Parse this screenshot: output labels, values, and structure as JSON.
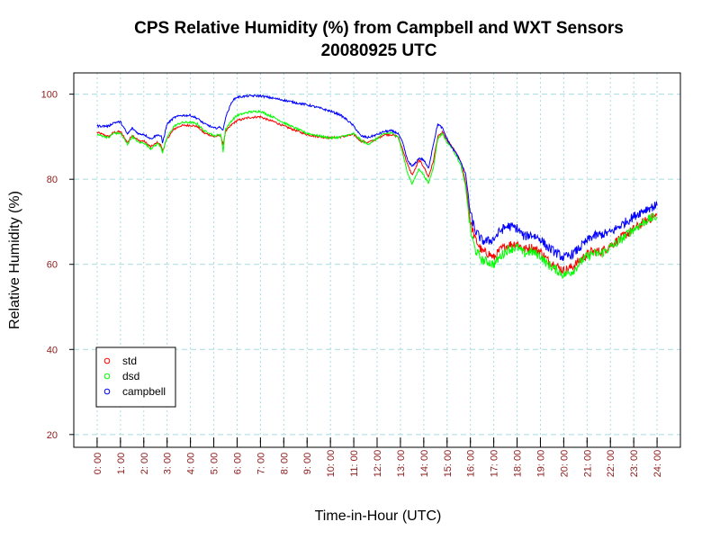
{
  "chart_data": {
    "type": "line",
    "title": "CPS Relative Humidity (%) from Campbell and WXT Sensors",
    "subtitle": "20080925  UTC",
    "xlabel": "Time-in-Hour (UTC)",
    "ylabel": "Relative Humidity (%)",
    "xlim": [
      -1,
      25
    ],
    "ylim": [
      17,
      105
    ],
    "yticks": [
      20,
      40,
      60,
      80,
      100
    ],
    "xticks": [
      0,
      1,
      2,
      3,
      4,
      5,
      6,
      7,
      8,
      9,
      10,
      11,
      12,
      13,
      14,
      15,
      16,
      17,
      18,
      19,
      20,
      21,
      22,
      23,
      24
    ],
    "xtick_labels": [
      "0: 00",
      "1: 00",
      "2: 00",
      "3: 00",
      "4: 00",
      "5: 00",
      "6: 00",
      "7: 00",
      "8: 00",
      "9: 00",
      "10: 00",
      "11: 00",
      "12: 00",
      "13: 00",
      "14: 00",
      "15: 00",
      "16: 00",
      "17: 00",
      "18: 00",
      "19: 00",
      "20: 00",
      "21: 00",
      "22: 00",
      "23: 00",
      "24: 00"
    ],
    "grid": true,
    "legend_position": "bottom-left",
    "series": [
      {
        "name": "std",
        "color": "#ff0000",
        "x": [
          0,
          0.5,
          0.7,
          1.0,
          1.3,
          1.5,
          1.8,
          2.0,
          2.3,
          2.6,
          2.75,
          2.8,
          3.0,
          3.3,
          3.6,
          4.0,
          4.3,
          4.6,
          4.8,
          5.0,
          5.3,
          5.4,
          5.5,
          5.8,
          6.0,
          6.5,
          7.0,
          7.3,
          7.6,
          8.0,
          8.5,
          9.0,
          9.5,
          10.0,
          10.4,
          10.7,
          11.0,
          11.3,
          11.6,
          12.0,
          12.3,
          12.6,
          12.9,
          13.1,
          13.3,
          13.5,
          13.6,
          13.8,
          14.0,
          14.2,
          14.4,
          14.6,
          14.8,
          15.0,
          15.2,
          15.4,
          15.6,
          15.8,
          16.0,
          16.2,
          16.5,
          16.8,
          17.0,
          17.3,
          17.6,
          18.0,
          18.3,
          18.6,
          19.0,
          19.3,
          19.6,
          20.0,
          20.4,
          20.8,
          21.2,
          21.6,
          22.0,
          22.4,
          22.8,
          23.2,
          23.6,
          24.0
        ],
        "y": [
          91,
          90,
          91,
          91.2,
          88.6,
          90.4,
          89,
          89,
          87.6,
          88.7,
          87.8,
          86.6,
          89.5,
          91.8,
          92.6,
          92.7,
          92.4,
          90.8,
          90.5,
          90,
          90.3,
          88,
          91.2,
          93,
          93.8,
          94.5,
          94.7,
          94,
          93.5,
          92.5,
          91.5,
          90.5,
          90,
          89.7,
          89.9,
          90.2,
          90.5,
          89,
          88.6,
          89.5,
          90.5,
          90.5,
          90,
          87,
          83.5,
          81,
          82,
          84.5,
          83,
          80.5,
          84,
          90,
          91,
          89,
          87.8,
          86,
          84,
          79,
          70,
          66,
          63,
          62.5,
          61.5,
          63.5,
          64.5,
          65,
          63.5,
          64,
          63,
          61,
          60,
          58.5,
          59.5,
          61.5,
          63,
          63,
          64.5,
          66,
          67.5,
          69,
          70.5,
          71.5
        ]
      },
      {
        "name": "dsd",
        "color": "#00ff00",
        "x": [
          0,
          0.5,
          0.7,
          1.0,
          1.3,
          1.5,
          1.8,
          2.0,
          2.3,
          2.6,
          2.75,
          2.8,
          3.0,
          3.3,
          3.6,
          4.0,
          4.3,
          4.6,
          4.8,
          5.0,
          5.3,
          5.4,
          5.5,
          5.8,
          6.0,
          6.5,
          7.0,
          7.3,
          7.6,
          8.0,
          8.5,
          9.0,
          9.5,
          10.0,
          10.4,
          10.7,
          11.0,
          11.3,
          11.6,
          12.0,
          12.3,
          12.6,
          12.9,
          13.1,
          13.3,
          13.5,
          13.6,
          13.8,
          14.0,
          14.2,
          14.4,
          14.6,
          14.8,
          15.0,
          15.2,
          15.4,
          15.6,
          15.8,
          16.0,
          16.2,
          16.5,
          16.8,
          17.0,
          17.3,
          17.6,
          18.0,
          18.3,
          18.6,
          19.0,
          19.3,
          19.6,
          20.0,
          20.4,
          20.8,
          21.2,
          21.6,
          22.0,
          22.4,
          22.8,
          23.2,
          23.6,
          24.0
        ],
        "y": [
          90.5,
          89.8,
          90.8,
          90.8,
          88.2,
          90,
          88.6,
          88.6,
          87.2,
          88.4,
          87.5,
          86.2,
          89.8,
          92.5,
          93.3,
          93.4,
          93,
          91.3,
          91,
          90.2,
          90.5,
          86.5,
          91.8,
          94,
          95,
          95.8,
          96,
          95.2,
          94.5,
          93.3,
          92,
          90.8,
          90.2,
          89.7,
          89.9,
          90.3,
          90.7,
          89.2,
          88.2,
          89.6,
          90.7,
          90.9,
          90,
          86,
          81.5,
          79,
          80,
          82.5,
          81,
          79,
          82.5,
          89.5,
          90.8,
          88.6,
          87.5,
          85.5,
          83,
          78,
          68,
          63.5,
          61,
          60.5,
          60,
          62,
          63.5,
          64,
          62.5,
          63,
          62,
          60,
          59,
          57.5,
          58.5,
          61,
          62.5,
          62.5,
          64,
          65.5,
          67.5,
          69,
          70.5,
          71.2
        ]
      },
      {
        "name": "campbell",
        "color": "#0000ff",
        "x": [
          0,
          0.5,
          0.7,
          1.0,
          1.3,
          1.5,
          1.8,
          2.0,
          2.3,
          2.6,
          2.75,
          2.8,
          3.0,
          3.3,
          3.6,
          4.0,
          4.3,
          4.6,
          4.8,
          5.0,
          5.3,
          5.4,
          5.5,
          5.8,
          6.0,
          6.5,
          7.0,
          7.3,
          7.6,
          8.0,
          8.5,
          9.0,
          9.5,
          10.0,
          10.4,
          10.7,
          11.0,
          11.3,
          11.6,
          12.0,
          12.3,
          12.6,
          12.9,
          13.1,
          13.3,
          13.5,
          13.6,
          13.8,
          14.0,
          14.2,
          14.4,
          14.6,
          14.8,
          15.0,
          15.2,
          15.4,
          15.6,
          15.8,
          16.0,
          16.2,
          16.5,
          16.8,
          17.0,
          17.3,
          17.6,
          18.0,
          18.3,
          18.6,
          19.0,
          19.3,
          19.6,
          20.0,
          20.4,
          20.8,
          21.2,
          21.6,
          22.0,
          22.4,
          22.8,
          23.2,
          23.6,
          24.0
        ],
        "y": [
          92.5,
          92.5,
          93.3,
          93.5,
          90.6,
          92,
          90.6,
          90.6,
          89.5,
          90.5,
          90,
          88.5,
          93,
          94.5,
          95,
          95,
          94.3,
          93,
          92.6,
          92,
          92.2,
          91.5,
          94.5,
          98.5,
          99.3,
          99.6,
          99.6,
          99.3,
          99,
          98.6,
          98,
          97.5,
          96.8,
          96,
          95.2,
          94,
          92.5,
          90.2,
          89.8,
          90.5,
          91.2,
          91.4,
          90.8,
          88.5,
          84.5,
          83,
          83.5,
          85,
          84.5,
          82.5,
          88,
          93,
          92,
          89.5,
          87.5,
          86,
          84,
          81,
          72,
          68,
          65.5,
          65.5,
          66,
          68,
          69,
          68.5,
          66.5,
          67,
          66,
          64,
          63,
          61.5,
          62.5,
          64.5,
          66.5,
          67,
          67.5,
          69,
          70.5,
          72,
          73.2,
          73.8
        ]
      }
    ]
  }
}
